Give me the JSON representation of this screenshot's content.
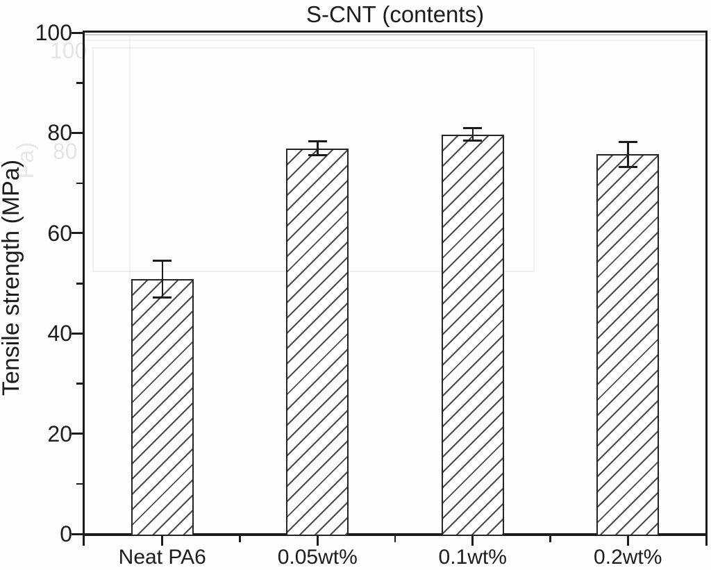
{
  "figure": {
    "title": "S-CNT (contents)"
  },
  "chart_data": {
    "type": "bar",
    "title": "S-CNT (contents)",
    "categories": [
      "Neat PA6",
      "0.05wt%",
      "0.1wt%",
      "0.2wt%"
    ],
    "values": [
      50.8,
      76.9,
      79.7,
      75.7
    ],
    "error_bars": [
      3.7,
      1.4,
      1.3,
      2.5
    ],
    "xlabel": "",
    "ylabel": "Tensile strength (MPa)",
    "ylim": [
      0,
      100
    ],
    "yticks": [
      0,
      20,
      40,
      60,
      80,
      100
    ],
    "minor_ytick_step": 10,
    "grid": false,
    "legend": "none",
    "bar_style": {
      "fill": "#ffffff",
      "hatch": "forward-diagonal",
      "hatch_color": "#4a4a4a",
      "edge_color": "#242424"
    },
    "axis_color": "#1b1b1b",
    "text_color": "#1c1c1c"
  },
  "ghost_artifacts": {
    "y100": "100",
    "y80": "80",
    "ylabel_fragment": "Pa)"
  }
}
